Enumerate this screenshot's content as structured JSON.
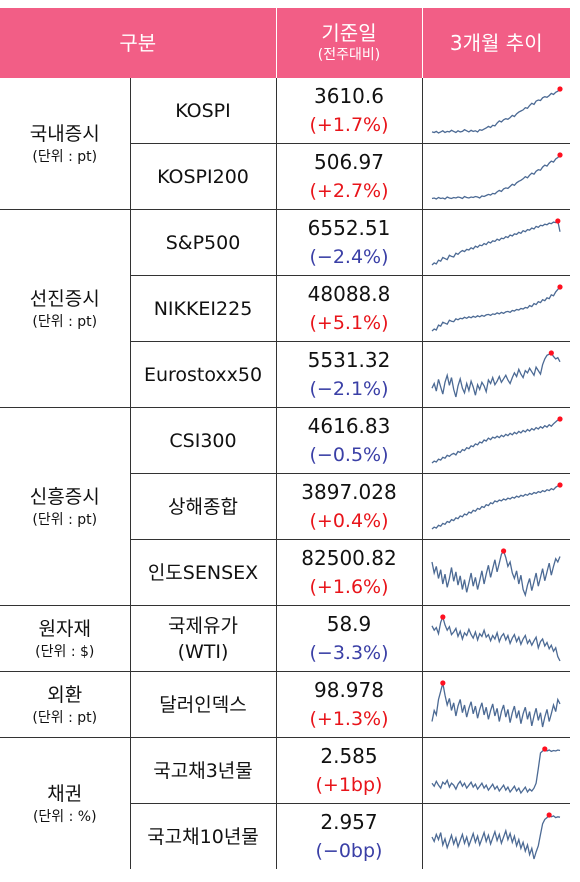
{
  "header": {
    "col1": "구분",
    "col2_main": "기준일",
    "col2_sub": "(전주대비)",
    "col3": "3개월 추이"
  },
  "groups": [
    {
      "name": "국내증시",
      "unit": "(단위 : pt)",
      "rows": [
        {
          "name": "KOSPI",
          "value": "3610.6",
          "change": "(+1.7%)",
          "direction": "up",
          "trend": [
            22,
            21,
            23,
            20,
            22,
            24,
            21,
            23,
            22,
            25,
            23,
            21,
            24,
            22,
            23,
            26,
            24,
            22,
            25,
            23,
            24,
            22,
            26,
            25,
            27,
            29,
            32,
            30,
            34,
            33,
            38,
            42,
            40,
            44,
            46,
            45,
            48,
            52,
            50,
            55,
            58,
            60,
            62,
            66,
            65,
            70,
            74,
            72,
            78,
            80,
            79,
            84,
            86,
            85,
            88,
            92,
            90,
            94,
            96,
            100
          ]
        },
        {
          "name": "KOSPI200",
          "value": "506.97",
          "change": "(+2.7%)",
          "direction": "up",
          "trend": [
            14,
            15,
            13,
            16,
            14,
            15,
            13,
            17,
            15,
            14,
            16,
            15,
            17,
            16,
            14,
            18,
            16,
            15,
            17,
            16,
            18,
            17,
            15,
            19,
            18,
            20,
            22,
            21,
            24,
            23,
            27,
            30,
            28,
            33,
            35,
            34,
            38,
            42,
            40,
            45,
            48,
            50,
            53,
            57,
            55,
            60,
            64,
            62,
            68,
            71,
            70,
            76,
            80,
            78,
            84,
            88,
            86,
            92,
            95,
            100
          ]
        }
      ]
    },
    {
      "name": "선진증시",
      "unit": "(단위 : pt)",
      "rows": [
        {
          "name": "S&P500",
          "value": "6552.51",
          "change": "(−2.4%)",
          "direction": "down",
          "trend": [
            18,
            22,
            20,
            27,
            25,
            32,
            30,
            28,
            36,
            34,
            33,
            40,
            38,
            42,
            45,
            43,
            47,
            46,
            50,
            48,
            53,
            51,
            55,
            54,
            58,
            56,
            61,
            59,
            63,
            62,
            66,
            64,
            68,
            67,
            71,
            69,
            74,
            72,
            76,
            75,
            79,
            77,
            82,
            80,
            84,
            83,
            87,
            85,
            90,
            88,
            92,
            91,
            94,
            93,
            96,
            95,
            98,
            97,
            100,
            80
          ]
        },
        {
          "name": "NIKKEI225",
          "value": "48088.8",
          "change": "(+5.1%)",
          "direction": "up",
          "trend": [
            10,
            14,
            12,
            22,
            20,
            28,
            26,
            24,
            32,
            30,
            29,
            35,
            33,
            36,
            35,
            38,
            36,
            39,
            37,
            40,
            38,
            41,
            39,
            42,
            40,
            43,
            44,
            42,
            45,
            44,
            47,
            45,
            48,
            46,
            49,
            50,
            48,
            52,
            51,
            54,
            53,
            56,
            55,
            58,
            57,
            62,
            60,
            66,
            64,
            70,
            68,
            74,
            72,
            78,
            76,
            84,
            82,
            90,
            95,
            100
          ]
        },
        {
          "name": "Eurostoxx50",
          "value": "5531.32",
          "change": "(−2.1%)",
          "direction": "down",
          "trend": [
            40,
            48,
            35,
            55,
            42,
            30,
            50,
            62,
            45,
            58,
            38,
            25,
            44,
            56,
            40,
            32,
            48,
            36,
            52,
            42,
            28,
            46,
            38,
            50,
            44,
            34,
            54,
            48,
            58,
            46,
            52,
            60,
            50,
            56,
            62,
            54,
            48,
            58,
            66,
            60,
            72,
            64,
            58,
            70,
            66,
            74,
            68,
            62,
            76,
            70,
            64,
            80,
            90,
            96,
            98,
            100,
            94,
            90,
            92,
            85
          ]
        }
      ]
    },
    {
      "name": "신흥증시",
      "unit": "(단위 : pt)",
      "rows": [
        {
          "name": "CSI300",
          "value": "4616.83",
          "change": "(−0.5%)",
          "direction": "down",
          "trend": [
            8,
            12,
            10,
            16,
            14,
            20,
            18,
            24,
            22,
            26,
            28,
            25,
            32,
            30,
            36,
            34,
            40,
            38,
            44,
            42,
            48,
            46,
            52,
            50,
            56,
            54,
            60,
            57,
            62,
            60,
            64,
            61,
            66,
            63,
            68,
            65,
            70,
            67,
            72,
            69,
            74,
            71,
            76,
            73,
            78,
            75,
            80,
            77,
            82,
            79,
            84,
            81,
            86,
            83,
            88,
            85,
            90,
            94,
            98,
            100
          ]
        },
        {
          "name": "상해종합",
          "value": "3897.028",
          "change": "(+0.4%)",
          "direction": "up",
          "trend": [
            6,
            10,
            8,
            14,
            12,
            18,
            16,
            22,
            20,
            26,
            24,
            30,
            28,
            34,
            32,
            38,
            36,
            42,
            40,
            46,
            44,
            50,
            48,
            54,
            52,
            58,
            56,
            62,
            60,
            66,
            64,
            68,
            66,
            70,
            68,
            72,
            70,
            74,
            72,
            76,
            74,
            78,
            76,
            80,
            78,
            82,
            80,
            84,
            82,
            86,
            84,
            88,
            86,
            90,
            88,
            92,
            90,
            95,
            98,
            100
          ]
        },
        {
          "name": "인도SENSEX",
          "value": "82500.82",
          "change": "(+1.6%)",
          "direction": "up",
          "trend": [
            80,
            60,
            72,
            50,
            66,
            40,
            58,
            34,
            50,
            70,
            45,
            62,
            38,
            55,
            30,
            48,
            25,
            42,
            60,
            36,
            52,
            30,
            46,
            64,
            40,
            58,
            74,
            52,
            68,
            84,
            62,
            78,
            94,
            100,
            88,
            72,
            80,
            60,
            50,
            64,
            40,
            56,
            30,
            20,
            38,
            50,
            28,
            44,
            60,
            36,
            52,
            68,
            46,
            62,
            78,
            56,
            72,
            86,
            80,
            90
          ]
        }
      ]
    },
    {
      "name": "원자재",
      "unit": "(단위 : $)",
      "rows": [
        {
          "name": "국제유가\n(WTI)",
          "value": "58.9",
          "change": "(−3.3%)",
          "direction": "down",
          "trend": [
            80,
            70,
            76,
            62,
            88,
            100,
            82,
            70,
            78,
            60,
            66,
            74,
            56,
            68,
            50,
            64,
            58,
            72,
            60,
            52,
            66,
            48,
            62,
            56,
            70,
            54,
            60,
            46,
            58,
            50,
            64,
            44,
            56,
            62,
            48,
            58,
            40,
            52,
            60,
            44,
            54,
            38,
            50,
            58,
            40,
            48,
            36,
            46,
            54,
            30,
            44,
            50,
            34,
            42,
            28,
            36,
            22,
            30,
            10,
            0
          ]
        }
      ]
    },
    {
      "name": "외환",
      "unit": "(단위 : pt)",
      "rows": [
        {
          "name": "달러인덱스",
          "value": "98.978",
          "change": "(+1.3%)",
          "direction": "up",
          "trend": [
            30,
            50,
            42,
            70,
            85,
            100,
            78,
            60,
            72,
            50,
            64,
            40,
            58,
            70,
            46,
            60,
            38,
            54,
            66,
            44,
            58,
            36,
            52,
            64,
            42,
            56,
            34,
            50,
            62,
            40,
            54,
            30,
            48,
            60,
            38,
            52,
            28,
            46,
            58,
            36,
            50,
            26,
            44,
            56,
            34,
            48,
            22,
            40,
            54,
            32,
            46,
            20,
            38,
            52,
            30,
            44,
            60,
            48,
            70,
            62
          ]
        }
      ]
    }
  ],
  "bond_group": {
    "name": "채권",
    "unit": "(단위 : %)",
    "rows": [
      {
        "name": "국고채3년물",
        "value": "2.585",
        "change": "(+1bp)",
        "direction": "up",
        "trend": [
          30,
          24,
          34,
          26,
          20,
          32,
          28,
          36,
          22,
          30,
          26,
          18,
          28,
          34,
          24,
          30,
          20,
          26,
          32,
          22,
          28,
          18,
          24,
          30,
          20,
          26,
          16,
          22,
          28,
          18,
          24,
          14,
          20,
          26,
          16,
          22,
          12,
          18,
          24,
          14,
          20,
          10,
          16,
          22,
          12,
          18,
          14,
          20,
          30,
          60,
          92,
          96,
          100,
          96,
          98,
          95,
          97,
          96,
          98,
          97
        ]
      },
      {
        "name": "국고채10년물",
        "value": "2.957",
        "change": "(−0bp)",
        "direction": "down",
        "trend": [
          50,
          40,
          56,
          44,
          60,
          32,
          46,
          26,
          40,
          54,
          34,
          48,
          28,
          42,
          56,
          36,
          50,
          30,
          44,
          58,
          38,
          52,
          32,
          46,
          60,
          40,
          54,
          34,
          48,
          62,
          42,
          56,
          36,
          50,
          64,
          44,
          58,
          38,
          52,
          30,
          44,
          24,
          38,
          18,
          32,
          10,
          24,
          0,
          16,
          30,
          56,
          80,
          90,
          94,
          100,
          96,
          98,
          94,
          96,
          95
        ]
      }
    ]
  },
  "colors": {
    "header_bg": "#f25e86",
    "up": "#e8141a",
    "down": "#3a3fa6",
    "spark_line": "#4c6a94",
    "spark_dot": "#ff1020"
  }
}
